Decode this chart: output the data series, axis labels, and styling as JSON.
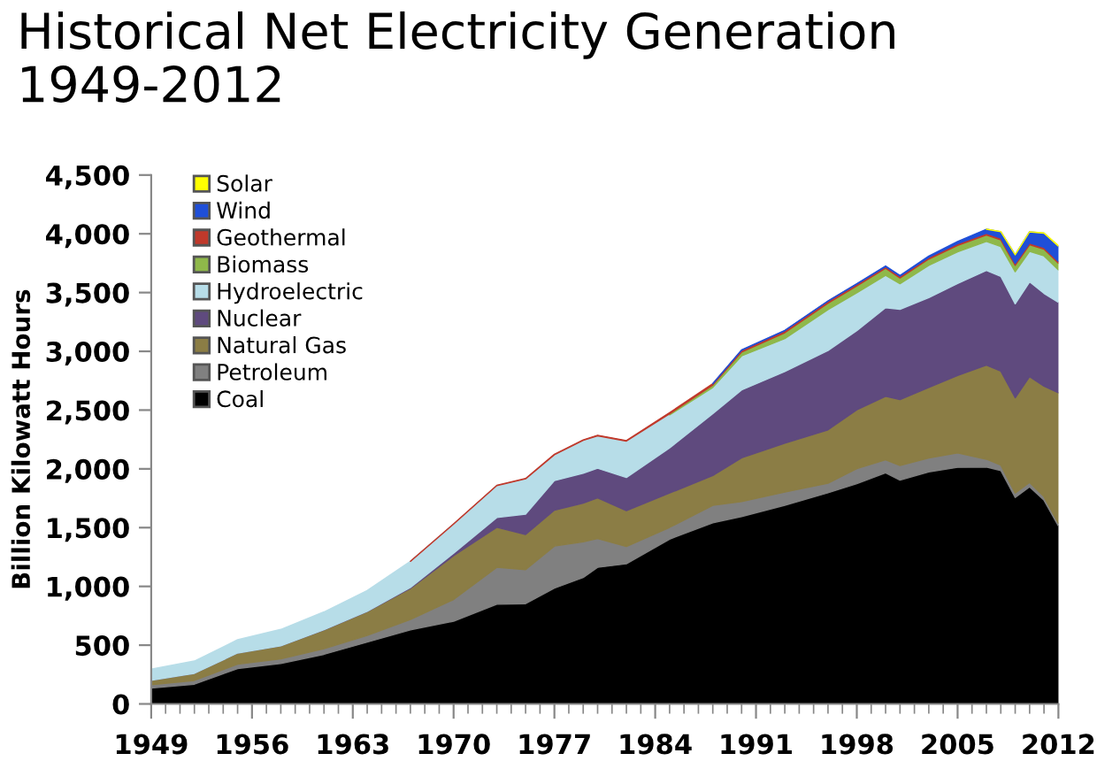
{
  "chart_data": {
    "type": "area",
    "stacked": true,
    "title": "Historical Net Electricity Generation\n1949-2012",
    "ylabel": "Billion Kilowatt Hours",
    "x": [
      1949,
      1952,
      1955,
      1958,
      1961,
      1964,
      1967,
      1970,
      1973,
      1975,
      1977,
      1979,
      1980,
      1982,
      1985,
      1988,
      1990,
      1993,
      1996,
      1998,
      2000,
      2001,
      2003,
      2005,
      2007,
      2008,
      2009,
      2010,
      2011,
      2012
    ],
    "xlim": [
      1949,
      2012
    ],
    "xticks": [
      1949,
      1956,
      1963,
      1970,
      1977,
      1984,
      1991,
      1998,
      2005,
      2012
    ],
    "ylim": [
      0,
      4500
    ],
    "yticks": [
      0,
      500,
      {
        "value": 1000,
        "label": "1,000"
      },
      {
        "value": 1500,
        "label": "1,500"
      },
      {
        "value": 2000,
        "label": "2,000"
      },
      {
        "value": 2500,
        "label": "2,500"
      },
      {
        "value": 3000,
        "label": "3,000"
      },
      {
        "value": 3500,
        "label": "3,500"
      },
      {
        "value": 4000,
        "label": "4,000"
      },
      {
        "value": 4500,
        "label": "4,500"
      }
    ],
    "grid": false,
    "legend": "top left",
    "series": [
      {
        "name": "Coal",
        "color": "#000000",
        "values": [
          135,
          168,
          301,
          344,
          422,
          526,
          630,
          704,
          848,
          853,
          985,
          1075,
          1162,
          1192,
          1402,
          1541,
          1594,
          1690,
          1796,
          1874,
          1966,
          1904,
          1974,
          2013,
          2016,
          1986,
          1756,
          1847,
          1733,
          1514
        ]
      },
      {
        "name": "Petroleum",
        "color": "#808080",
        "values": [
          29,
          32,
          37,
          40,
          48,
          57,
          89,
          184,
          314,
          289,
          358,
          304,
          246,
          147,
          100,
          149,
          127,
          113,
          81,
          128,
          111,
          125,
          119,
          122,
          66,
          46,
          39,
          37,
          30,
          23
        ]
      },
      {
        "name": "Natural Gas",
        "color": "#8b7d45",
        "values": [
          37,
          60,
          95,
          110,
          159,
          202,
          264,
          373,
          341,
          300,
          306,
          329,
          346,
          305,
          292,
          253,
          373,
          415,
          455,
          500,
          540,
          560,
          600,
          660,
          800,
          800,
          810,
          900,
          940,
          1110
        ]
      },
      {
        "name": "Nuclear",
        "color": "#5f4a7e",
        "values": [
          0,
          0,
          0,
          0,
          2,
          3,
          8,
          22,
          83,
          173,
          251,
          255,
          251,
          283,
          384,
          527,
          577,
          610,
          675,
          673,
          754,
          769,
          764,
          782,
          806,
          806,
          799,
          807,
          790,
          769
        ]
      },
      {
        "name": "Hydroelectric",
        "color": "#b7dde8",
        "values": [
          95,
          105,
          113,
          140,
          152,
          177,
          222,
          248,
          272,
          300,
          220,
          280,
          276,
          309,
          281,
          223,
          290,
          280,
          347,
          323,
          275,
          217,
          275,
          270,
          247,
          254,
          273,
          260,
          319,
          276
        ]
      },
      {
        "name": "Biomass",
        "color": "#8fb84a",
        "values": [
          null,
          null,
          null,
          null,
          null,
          null,
          null,
          null,
          null,
          null,
          null,
          null,
          null,
          null,
          10,
          20,
          33,
          50,
          56,
          59,
          60,
          49,
          53,
          54,
          55,
          56,
          55,
          56,
          57,
          57
        ]
      },
      {
        "name": "Geothermal",
        "color": "#c0392b",
        "values": [
          null,
          null,
          null,
          null,
          null,
          null,
          1,
          1,
          2,
          3,
          4,
          4,
          5,
          5,
          9,
          11,
          15,
          17,
          16,
          15,
          14,
          14,
          14,
          15,
          15,
          15,
          15,
          15,
          16,
          16
        ]
      },
      {
        "name": "Wind",
        "color": "#1f4fd8",
        "values": [
          null,
          null,
          null,
          null,
          null,
          null,
          null,
          null,
          null,
          null,
          null,
          null,
          null,
          null,
          null,
          1,
          3,
          3,
          3,
          3,
          6,
          7,
          11,
          18,
          34,
          55,
          74,
          95,
          120,
          130
        ]
      },
      {
        "name": "Solar",
        "color": "#ffff00",
        "values": [
          null,
          null,
          null,
          null,
          null,
          null,
          null,
          null,
          null,
          null,
          null,
          null,
          null,
          null,
          null,
          null,
          null,
          null,
          null,
          null,
          null,
          null,
          null,
          null,
          1,
          1,
          1,
          1,
          2,
          4
        ]
      }
    ]
  }
}
